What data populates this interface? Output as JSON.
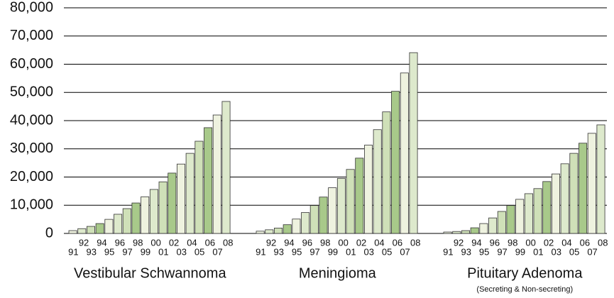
{
  "chart_data": {
    "type": "bar",
    "categories": [
      "91",
      "92",
      "93",
      "94",
      "95",
      "96",
      "97",
      "98",
      "99",
      "00",
      "01",
      "02",
      "03",
      "04",
      "05",
      "06",
      "07",
      "08"
    ],
    "colors": [
      "#eef2df",
      "#dde9cc",
      "#cfe0b8",
      "#a8c98a",
      "#eef2df",
      "#dde9cc",
      "#cfe0b8",
      "#a8c98a",
      "#eef2df",
      "#dde9cc",
      "#cfe0b8",
      "#a8c98a",
      "#eef2df",
      "#dde9cc",
      "#cfe0b8",
      "#a8c98a",
      "#eef2df",
      "#dde9cc"
    ],
    "groups": [
      {
        "name": "Vestibular Schwannoma",
        "values": [
          1000,
          1700,
          2500,
          3500,
          5000,
          6800,
          8800,
          10800,
          13000,
          15600,
          18300,
          21400,
          24600,
          28400,
          32700,
          37500,
          42000,
          46800
        ]
      },
      {
        "name": "Meningioma",
        "values": [
          800,
          1300,
          1900,
          3100,
          5100,
          7400,
          9900,
          12900,
          16200,
          19500,
          22700,
          26700,
          31300,
          36800,
          43100,
          50400,
          56900,
          64100
        ]
      },
      {
        "name": "Pituitary Adenoma",
        "note": "(Secreting & Non-secreting)",
        "values": [
          500,
          700,
          1000,
          2000,
          3500,
          5500,
          7800,
          9900,
          12100,
          14100,
          15900,
          18400,
          21100,
          24700,
          28400,
          32000,
          35500,
          38500
        ]
      }
    ],
    "ylim": [
      0,
      80000
    ],
    "yticks": [
      0,
      {
        "value": 10000,
        "label": "10,000"
      },
      {
        "value": 20000,
        "label": "20,000"
      },
      {
        "value": 30000,
        "label": "30,000"
      },
      {
        "value": 40000,
        "label": "40,000"
      },
      {
        "value": 50000,
        "label": "50,000"
      },
      {
        "value": 60000,
        "label": "60,000"
      },
      {
        "value": 70000,
        "label": "70,000"
      },
      {
        "value": 80000,
        "label": "80,000"
      }
    ],
    "grid": true
  }
}
